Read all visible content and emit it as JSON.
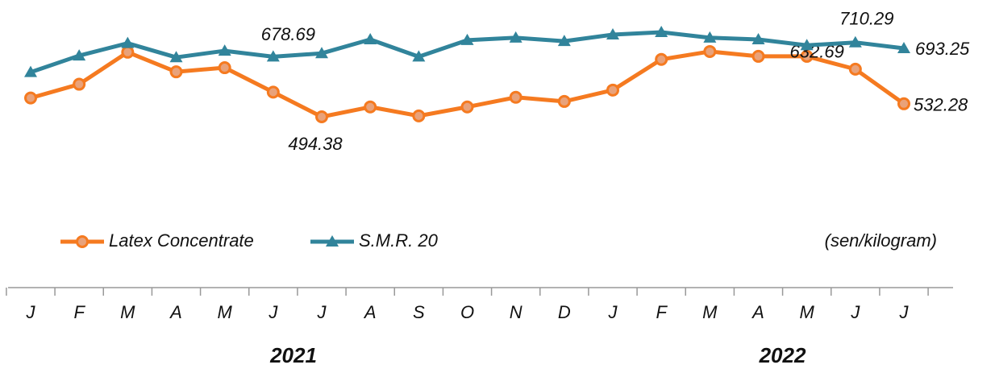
{
  "chart_data": {
    "type": "line",
    "unit_label": "(sen/kilogram)",
    "categories": [
      "J",
      "F",
      "M",
      "A",
      "M",
      "J",
      "J",
      "A",
      "S",
      "O",
      "N",
      "D",
      "J",
      "F",
      "M",
      "A",
      "M",
      "J",
      "J"
    ],
    "year_labels": [
      "2021",
      "2022"
    ],
    "series": [
      {
        "name": "Latex Concentrate",
        "color": "#f57a20",
        "marker": "circle",
        "values": [
          549,
          589,
          682,
          625,
          637,
          566,
          494.38,
          523,
          497,
          523,
          551,
          539,
          572,
          661,
          684,
          670,
          670,
          632.69,
          532.28
        ]
      },
      {
        "name": "S.M.R. 20",
        "color": "#31849b",
        "marker": "triangle",
        "values": [
          624,
          672,
          708,
          667,
          686,
          669,
          678.69,
          719,
          669,
          717,
          724,
          714,
          733,
          740,
          724,
          719,
          702,
          710.29,
          693.25
        ]
      }
    ]
  }
}
